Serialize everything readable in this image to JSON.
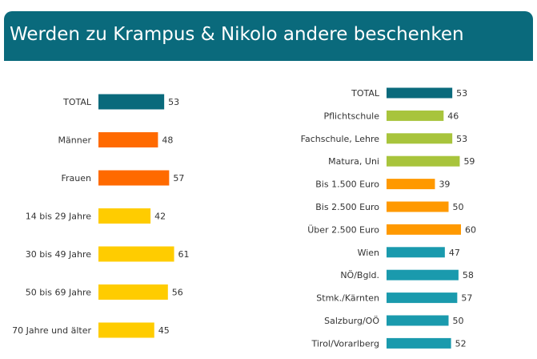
{
  "title": "Werden zu Krampus & Nikolo andere beschenken",
  "chart_data": [
    {
      "type": "bar",
      "orientation": "horizontal",
      "categories": [
        "TOTAL",
        "Männer",
        "Frauen",
        "14 bis 29 Jahre",
        "30 bis 49 Jahre",
        "50 bis 69 Jahre",
        "70 Jahre und älter"
      ],
      "values": [
        53,
        48,
        57,
        42,
        61,
        56,
        45
      ],
      "colors": [
        "#0a6a7c",
        "#ff6a00",
        "#ff6a00",
        "#ffcc00",
        "#ffcc00",
        "#ffcc00",
        "#ffcc00"
      ],
      "data_labels": true
    },
    {
      "type": "bar",
      "orientation": "horizontal",
      "categories": [
        "TOTAL",
        "Pflichtschule",
        "Fachschule, Lehre",
        "Matura, Uni",
        "Bis 1.500 Euro",
        "Bis 2.500 Euro",
        "Über 2.500 Euro",
        "Wien",
        "NÖ/Bgld.",
        "Stmk./Kärnten",
        "Salzburg/OÖ",
        "Tirol/Vorarlberg"
      ],
      "values": [
        53,
        46,
        53,
        59,
        39,
        50,
        60,
        47,
        58,
        57,
        50,
        52
      ],
      "colors": [
        "#0a6a7c",
        "#a8c43c",
        "#a8c43c",
        "#a8c43c",
        "#ff9900",
        "#ff9900",
        "#ff9900",
        "#1a9aad",
        "#1a9aad",
        "#1a9aad",
        "#1a9aad",
        "#1a9aad"
      ],
      "data_labels": true
    }
  ]
}
